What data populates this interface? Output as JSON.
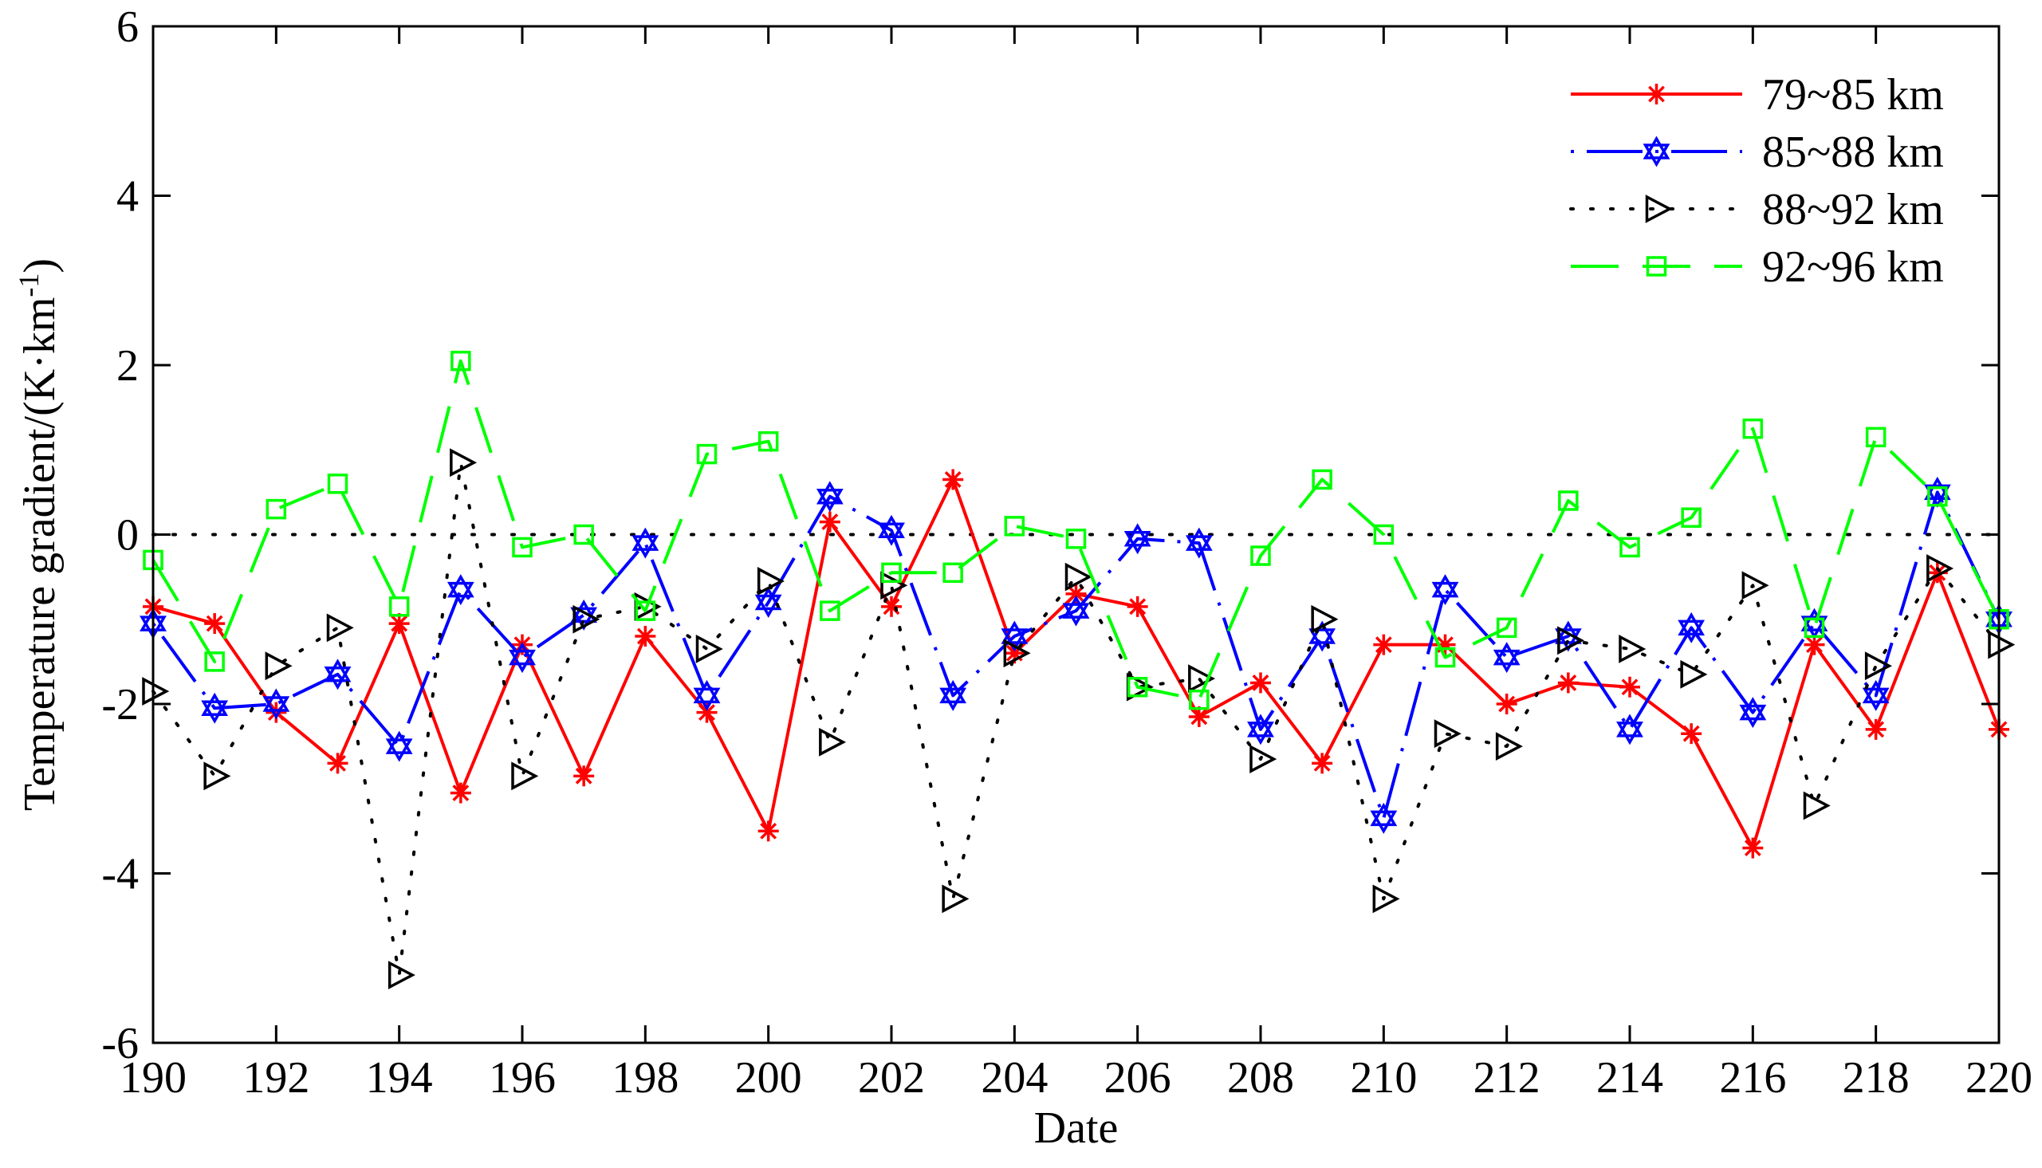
{
  "chart_data": {
    "type": "line",
    "xlabel": "Date",
    "ylabel": "Temperature gradient/(K·km",
    "ylabel_sup": "-1",
    "ylabel_close": ")",
    "xlim": [
      190,
      220
    ],
    "ylim": [
      -6,
      6
    ],
    "xticks": [
      190,
      192,
      194,
      196,
      198,
      200,
      202,
      204,
      206,
      208,
      210,
      212,
      214,
      216,
      218,
      220
    ],
    "yticks": [
      -6,
      -4,
      -2,
      0,
      2,
      4,
      6
    ],
    "x": [
      190,
      191,
      192,
      193,
      194,
      195,
      196,
      197,
      198,
      199,
      200,
      201,
      202,
      203,
      204,
      205,
      206,
      207,
      208,
      209,
      210,
      211,
      212,
      213,
      214,
      215,
      216,
      217,
      218,
      219,
      220
    ],
    "zero_line": true,
    "legend_position": "top-right",
    "series": [
      {
        "name": "79~85 km",
        "color": "#ff0000",
        "linestyle": "solid",
        "marker": "asterisk",
        "values": [
          -0.85,
          -1.05,
          -2.1,
          -2.7,
          -1.05,
          -3.05,
          -1.3,
          -2.85,
          -1.2,
          -2.1,
          -3.5,
          0.15,
          -0.85,
          0.65,
          -1.4,
          -0.7,
          -0.85,
          -2.15,
          -1.75,
          -2.7,
          -1.3,
          -1.3,
          -2.0,
          -1.75,
          -1.8,
          -2.35,
          -3.7,
          -1.3,
          -2.3,
          -0.45,
          -2.3
        ]
      },
      {
        "name": "85~88 km",
        "color": "#0000ff",
        "linestyle": "dashdot",
        "marker": "hexagram",
        "values": [
          -1.05,
          -2.05,
          -2.0,
          -1.65,
          -2.5,
          -0.65,
          -1.45,
          -0.95,
          -0.1,
          -1.9,
          -0.8,
          0.45,
          0.05,
          -1.9,
          -1.2,
          -0.9,
          -0.05,
          -0.1,
          -2.3,
          -1.2,
          -3.35,
          -0.65,
          -1.45,
          -1.2,
          -2.3,
          -1.1,
          -2.1,
          -1.05,
          -1.9,
          0.5,
          -1.0
        ]
      },
      {
        "name": "88~92 km",
        "color": "#000000",
        "linestyle": "dotted",
        "marker": "triangle-right",
        "values": [
          -1.85,
          -2.85,
          -1.55,
          -1.1,
          -5.2,
          0.85,
          -2.85,
          -1.0,
          -0.85,
          -1.35,
          -0.55,
          -2.45,
          -0.6,
          -4.3,
          -1.4,
          -0.5,
          -1.8,
          -1.7,
          -2.65,
          -1.0,
          -4.3,
          -2.35,
          -2.5,
          -1.25,
          -1.35,
          -1.65,
          -0.6,
          -3.2,
          -1.55,
          -0.4,
          -1.3
        ]
      },
      {
        "name": "92~96 km",
        "color": "#00ff00",
        "linestyle": "dashed",
        "marker": "square",
        "values": [
          -0.3,
          -1.5,
          0.3,
          0.6,
          -0.85,
          2.05,
          -0.15,
          0.0,
          -0.9,
          0.95,
          1.1,
          -0.9,
          -0.45,
          -0.45,
          0.1,
          -0.05,
          -1.8,
          -1.95,
          -0.25,
          0.65,
          0.0,
          -1.45,
          -1.1,
          0.4,
          -0.15,
          0.2,
          1.25,
          -1.1,
          1.15,
          0.45,
          -1.0
        ]
      }
    ]
  }
}
